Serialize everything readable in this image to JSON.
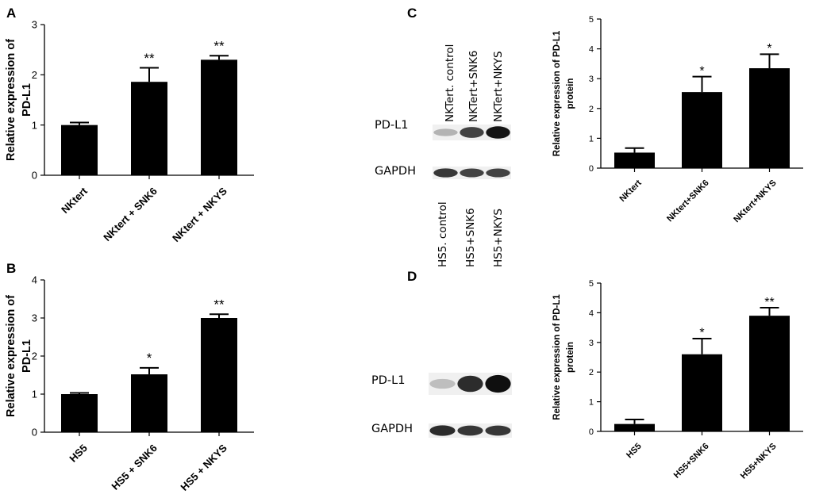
{
  "chart_data": [
    {
      "panel": "A",
      "type": "bar",
      "ylabel_lines": [
        "Relative expression of",
        "PD-L1"
      ],
      "ylim": [
        0,
        3
      ],
      "yticks": [
        "0",
        "1",
        "2",
        "3"
      ],
      "categories": [
        "NKtert",
        "NKtert + SNK6",
        "NKtert + NKYS"
      ],
      "values": [
        1.0,
        1.86,
        2.3
      ],
      "errors": [
        0.05,
        0.28,
        0.08
      ],
      "significance": [
        "",
        "**",
        "**"
      ]
    },
    {
      "panel": "B",
      "type": "bar",
      "ylabel_lines": [
        "Relative expression of",
        "PD-L1"
      ],
      "ylim": [
        0,
        4
      ],
      "yticks": [
        "0",
        "1",
        "2",
        "3",
        "4"
      ],
      "categories": [
        "HS5",
        "HS5 + SNK6",
        "HS5 + NKYS"
      ],
      "values": [
        1.0,
        1.52,
        3.0
      ],
      "errors": [
        0.03,
        0.17,
        0.1
      ],
      "significance": [
        "",
        "*",
        "**"
      ]
    },
    {
      "panel": "C",
      "type": "bar",
      "ylabel_lines": [
        "Relative expression of PD-L1",
        "protein"
      ],
      "ylim": [
        0,
        5
      ],
      "yticks": [
        "0",
        "1",
        "2",
        "3",
        "4",
        "5"
      ],
      "categories": [
        "NKtert",
        "NKtert+SNK6",
        "NKtert+NKYS"
      ],
      "values": [
        0.52,
        2.55,
        3.35
      ],
      "errors": [
        0.15,
        0.52,
        0.47
      ],
      "significance": [
        "",
        "*",
        "*"
      ]
    },
    {
      "panel": "D",
      "type": "bar",
      "ylabel_lines": [
        "Relative expression of PD-L1",
        "protein"
      ],
      "ylim": [
        0,
        5
      ],
      "yticks": [
        "0",
        "1",
        "2",
        "3",
        "4",
        "5"
      ],
      "categories": [
        "HS5",
        "HS5+SNK6",
        "HS5+NKYS"
      ],
      "values": [
        0.25,
        2.6,
        3.9
      ],
      "errors": [
        0.15,
        0.53,
        0.27
      ],
      "significance": [
        "",
        "*",
        "**"
      ]
    }
  ],
  "blots": [
    {
      "panel": "C",
      "lanes": [
        "NKTert. control",
        "NKTert+SNK6",
        "NKTert+NKYS"
      ],
      "rows": [
        {
          "label": "PD-L1",
          "intensity": [
            0.25,
            0.75,
            0.95
          ]
        },
        {
          "label": "GAPDH",
          "intensity": [
            0.8,
            0.75,
            0.75
          ]
        }
      ]
    },
    {
      "panel": "D",
      "lanes": [
        "HS5. control",
        "HS5+SNK6",
        "HS5+NKYS"
      ],
      "rows": [
        {
          "label": "PD-L1",
          "intensity": [
            0.2,
            0.85,
            0.98
          ]
        },
        {
          "label": "GAPDH",
          "intensity": [
            0.85,
            0.8,
            0.8
          ]
        }
      ]
    }
  ]
}
